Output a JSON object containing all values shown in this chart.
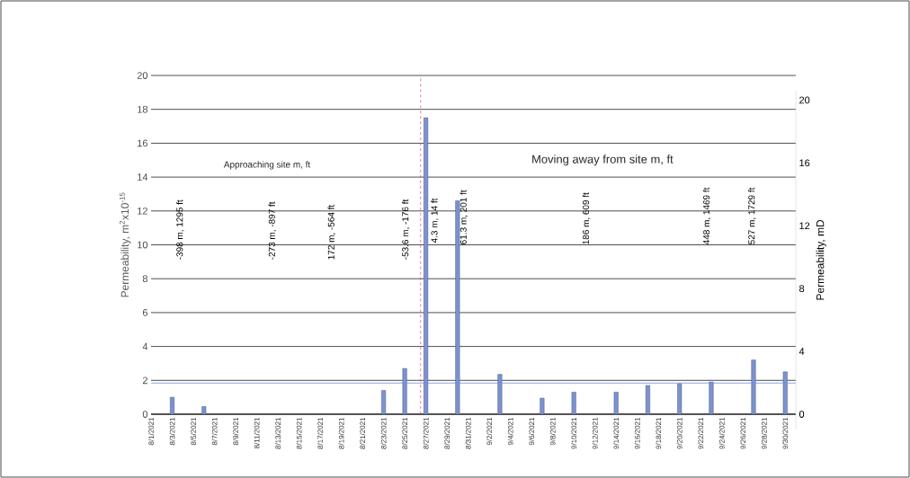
{
  "chart_data": {
    "type": "bar",
    "ylabel": "Permeability, m$^{2}$x10$^{-15}$",
    "y2label": "Permeability, mD",
    "x": [
      "2021-08-03",
      "2021-08-06",
      "2021-08-23",
      "2021-08-25",
      "2021-08-27",
      "2021-08-30",
      "2021-09-03",
      "2021-09-07",
      "2021-09-10",
      "2021-09-14",
      "2021-09-17",
      "2021-09-20",
      "2021-09-23",
      "2021-09-27",
      "2021-09-30"
    ],
    "values": [
      1.0,
      0.45,
      1.4,
      2.7,
      17.5,
      12.6,
      2.35,
      0.95,
      1.3,
      1.3,
      1.7,
      1.8,
      1.9,
      3.2,
      2.5
    ],
    "color": "#7b93d0",
    "xlim": [
      "2021-08-01",
      "2021-10-01"
    ],
    "xticks": [
      {
        "value": "2021-08-01",
        "label": "8/1/2021"
      },
      {
        "value": "2021-08-03",
        "label": "8/3/2021"
      },
      {
        "value": "2021-08-05",
        "label": "8/5/2021"
      },
      {
        "value": "2021-08-07",
        "label": "8/7/2021"
      },
      {
        "value": "2021-08-09",
        "label": "8/9/2021"
      },
      {
        "value": "2021-08-11",
        "label": "8/11/2021"
      },
      {
        "value": "2021-08-13",
        "label": "8/13/2021"
      },
      {
        "value": "2021-08-15",
        "label": "8/15/2021"
      },
      {
        "value": "2021-08-17",
        "label": "8/17/2021"
      },
      {
        "value": "2021-08-19",
        "label": "8/19/2021"
      },
      {
        "value": "2021-08-21",
        "label": "8/21/2021"
      },
      {
        "value": "2021-08-23",
        "label": "8/23/2021"
      },
      {
        "value": "2021-08-25",
        "label": "8/25/2021"
      },
      {
        "value": "2021-08-27",
        "label": "8/27/2021"
      },
      {
        "value": "2021-08-29",
        "label": "8/29/2021"
      },
      {
        "value": "2021-08-31",
        "label": "8/31/2021"
      },
      {
        "value": "2021-09-02",
        "label": "9/2/2021"
      },
      {
        "value": "2021-09-04",
        "label": "9/4/2021"
      },
      {
        "value": "2021-09-06",
        "label": "9/6/2021"
      },
      {
        "value": "2021-09-08",
        "label": "9/8/2021"
      },
      {
        "value": "2021-09-10",
        "label": "9/10/2021"
      },
      {
        "value": "2021-09-12",
        "label": "9/12/2021"
      },
      {
        "value": "2021-09-14",
        "label": "9/14/2021"
      },
      {
        "value": "2021-09-16",
        "label": "9/16/2021"
      },
      {
        "value": "2021-09-18",
        "label": "9/18/2021"
      },
      {
        "value": "2021-09-20",
        "label": "9/20/2021"
      },
      {
        "value": "2021-09-22",
        "label": "9/22/2021"
      },
      {
        "value": "2021-09-24",
        "label": "9/24/2021"
      },
      {
        "value": "2021-09-26",
        "label": "9/26/2021"
      },
      {
        "value": "2021-09-28",
        "label": "9/28/2021"
      },
      {
        "value": "2021-09-30",
        "label": "9/30/2021"
      }
    ],
    "ylim": [
      0,
      20
    ],
    "yticks": [
      0,
      2,
      4,
      6,
      8,
      10,
      12,
      14,
      16,
      18,
      20
    ],
    "y2lim": [
      -0.97,
      20.6
    ],
    "y2ticks": [
      {
        "value": 0,
        "label": "0"
      },
      {
        "value": 4,
        "label": "4"
      },
      {
        "value": 8,
        "label": "8"
      },
      {
        "value": 12,
        "label": "12"
      },
      {
        "value": 16,
        "label": "16"
      },
      {
        "value": 20,
        "label": "20"
      }
    ],
    "grid": "y",
    "ref_lines": [
      {
        "axis": "y",
        "value": 1.84,
        "color": "#6f8fe0",
        "line_style": "solid"
      },
      {
        "axis": "x",
        "value": "2021-08-26T12:00",
        "color": "#e03030",
        "line_style": "dashed"
      }
    ],
    "annotations": [
      "Approaching site m, ft",
      "Moving away from site m, ft",
      "-398 m, 1295 ft",
      "-273 m, -897 ft",
      "172 m, -564 ft",
      "-53.6 m, -176 ft",
      "4.3 m, 14 ft",
      "61.3 m, 201 ft",
      "186 m, 609 ft",
      "448 m, 1469 ft",
      "527 m, 1729 ft"
    ]
  }
}
